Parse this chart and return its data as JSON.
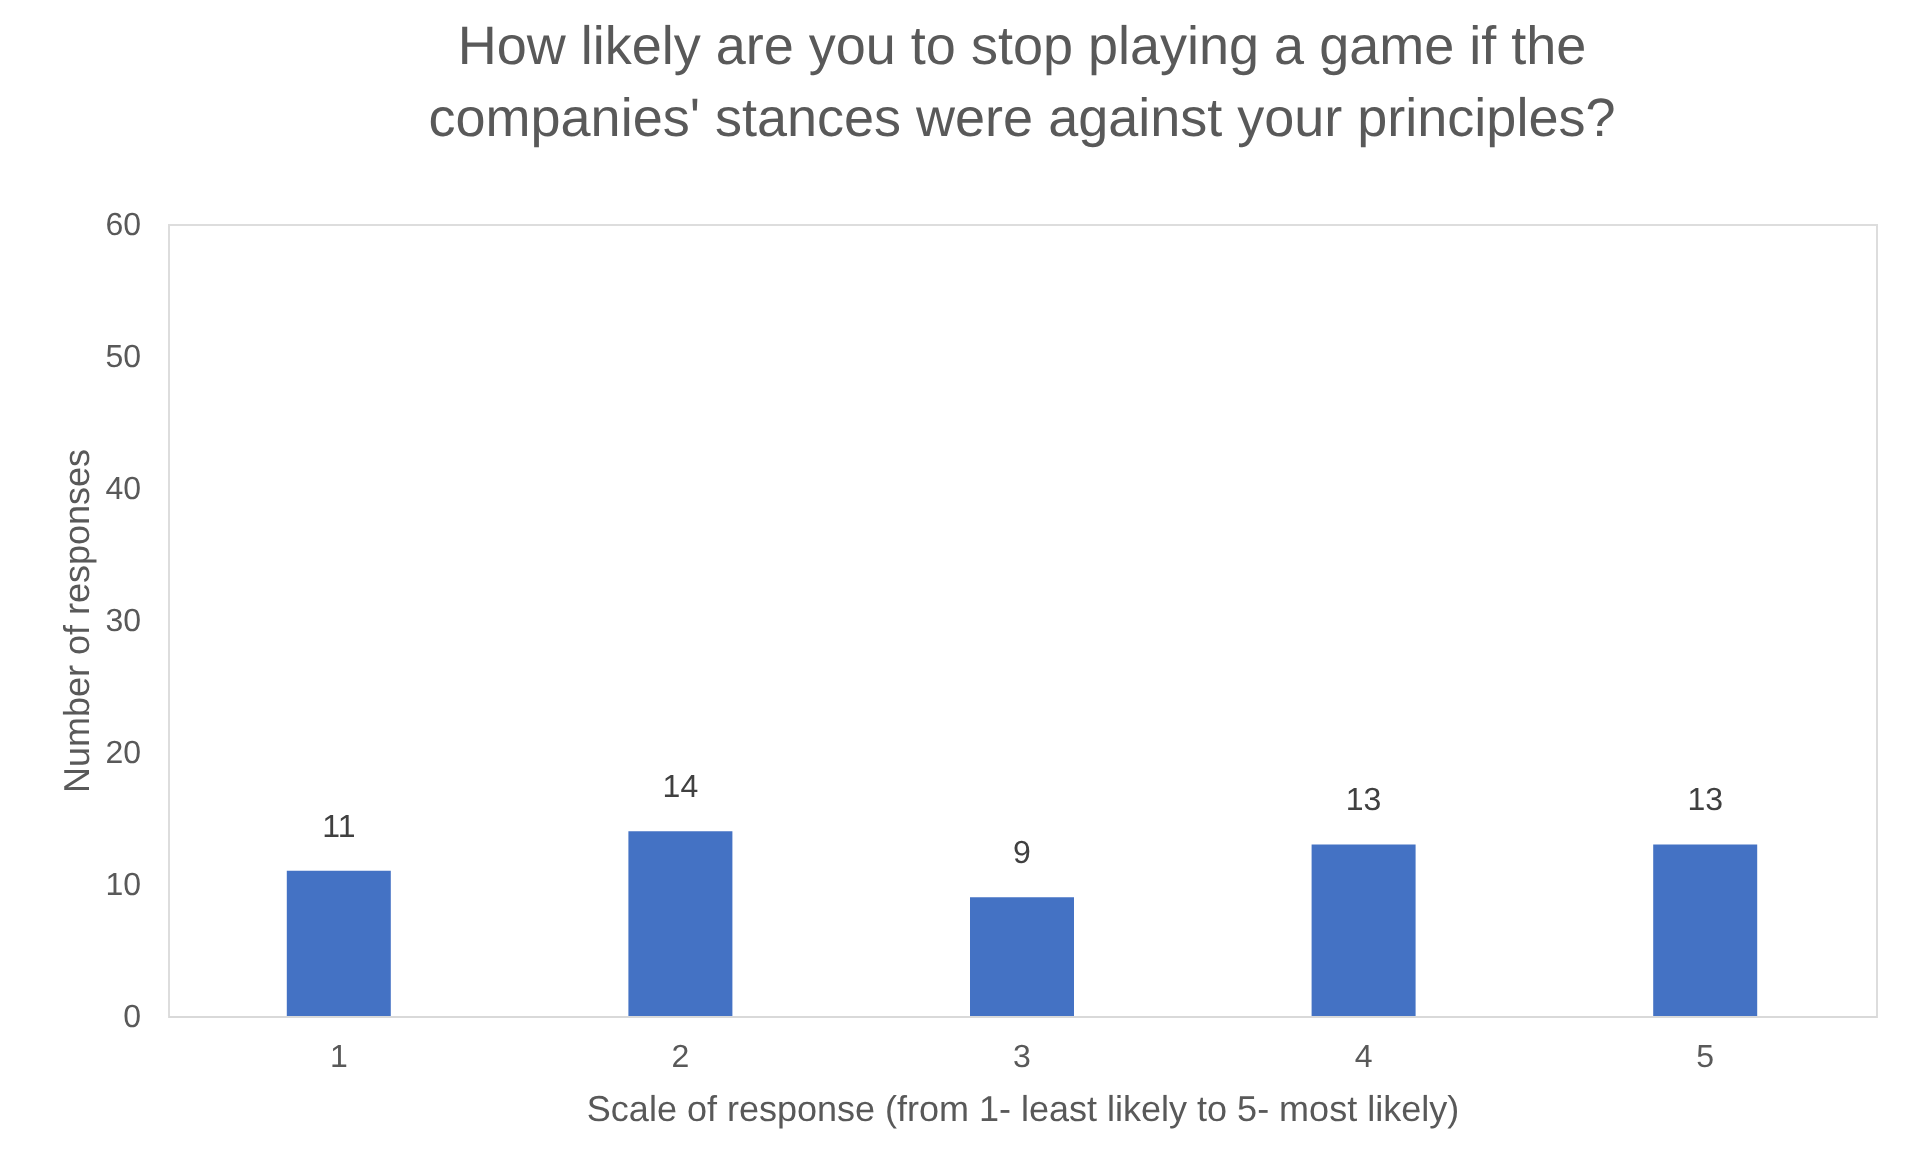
{
  "chart_data": {
    "type": "bar",
    "title": "How likely are you to stop playing a game if the companies' stances were against your principles?",
    "xlabel": "Scale of response (from 1- least likely to 5- most likely)",
    "ylabel": "Number of responses",
    "categories": [
      "1",
      "2",
      "3",
      "4",
      "5"
    ],
    "values": [
      11,
      14,
      9,
      13,
      13
    ],
    "color": "#4472c4",
    "ylim": [
      0,
      60
    ],
    "yticks": [
      0,
      10,
      20,
      30,
      40,
      50,
      60
    ],
    "grid": false,
    "data_labels": true
  }
}
